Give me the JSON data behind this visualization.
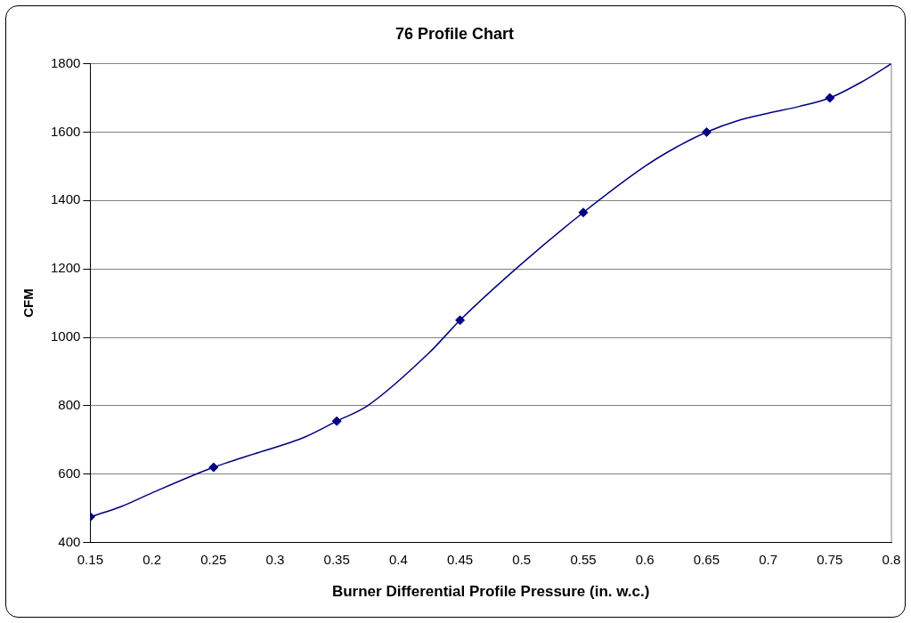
{
  "chart_data": {
    "type": "scatter",
    "title": "76 Profile Chart",
    "xlabel": "Burner Differential Profile Pressure (in. w.c.)",
    "ylabel": "CFM",
    "x": [
      0.15,
      0.25,
      0.35,
      0.45,
      0.55,
      0.65,
      0.75
    ],
    "series": [
      {
        "type": "scatter",
        "color": "#000080",
        "marker": "diamond",
        "values": [
          475,
          620,
          755,
          1050,
          1365,
          1600,
          1700
        ]
      },
      {
        "type": "line",
        "color": "#000080",
        "marker": "none",
        "x": [
          0.15,
          0.175,
          0.2,
          0.25,
          0.275,
          0.325,
          0.35,
          0.375,
          0.425,
          0.45,
          0.5,
          0.55,
          0.6,
          0.625,
          0.65,
          0.675,
          0.7,
          0.725,
          0.75,
          0.775,
          0.8
        ],
        "values": [
          475,
          505,
          545,
          620,
          650,
          710,
          755,
          800,
          955,
          1050,
          1215,
          1365,
          1500,
          1555,
          1600,
          1633,
          1655,
          1675,
          1700,
          1745,
          1800
        ]
      }
    ],
    "xlim": [
      0.15,
      0.8
    ],
    "xticks": [
      0.15,
      0.2,
      0.25,
      0.3,
      0.35,
      0.4,
      0.45,
      0.5,
      0.55,
      0.6,
      0.65,
      0.7,
      0.75,
      0.8
    ],
    "ylim": [
      400,
      1800
    ],
    "yticks": [
      400,
      600,
      800,
      1000,
      1200,
      1400,
      1600,
      1800
    ],
    "grid": "y",
    "legend": false
  }
}
